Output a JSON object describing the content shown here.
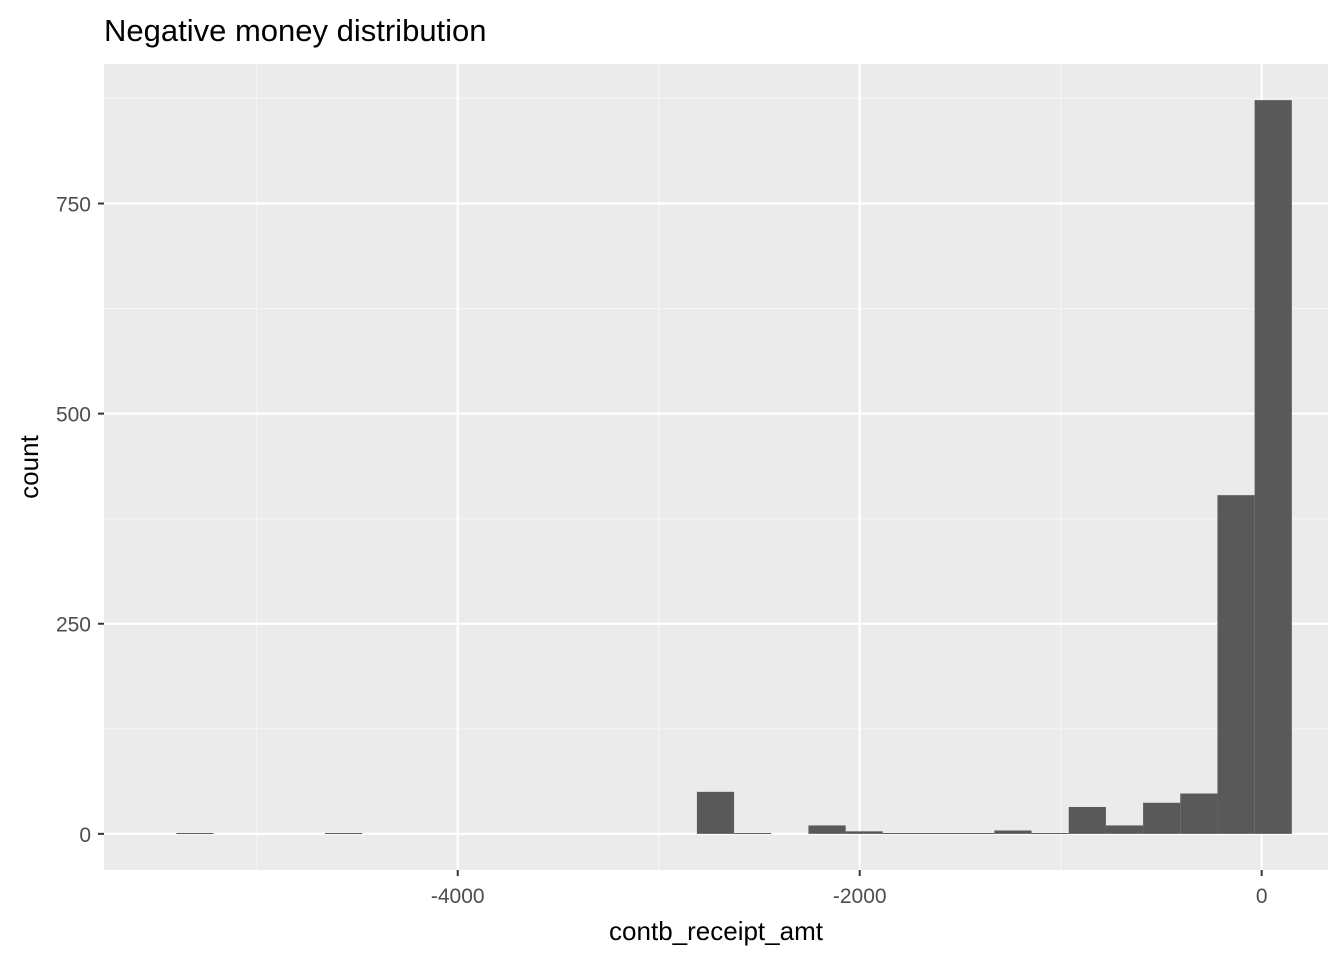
{
  "chart_data": {
    "type": "bar",
    "title": "Negative money distribution",
    "xlabel": "contb_receipt_amt",
    "ylabel": "count",
    "bins": [
      {
        "x0": -5400,
        "x1": -5215,
        "count": 1
      },
      {
        "x0": -5215,
        "x1": -5030,
        "count": 0
      },
      {
        "x0": -5030,
        "x1": -4845,
        "count": 0
      },
      {
        "x0": -4845,
        "x1": -4660,
        "count": 0
      },
      {
        "x0": -4660,
        "x1": -4475,
        "count": 1
      },
      {
        "x0": -4475,
        "x1": -4290,
        "count": 0
      },
      {
        "x0": -4290,
        "x1": -4105,
        "count": 0
      },
      {
        "x0": -4105,
        "x1": -3920,
        "count": 0
      },
      {
        "x0": -3920,
        "x1": -3735,
        "count": 0
      },
      {
        "x0": -3735,
        "x1": -3550,
        "count": 0
      },
      {
        "x0": -3550,
        "x1": -3365,
        "count": 0
      },
      {
        "x0": -3365,
        "x1": -3180,
        "count": 0
      },
      {
        "x0": -3180,
        "x1": -2995,
        "count": 0
      },
      {
        "x0": -2995,
        "x1": -2810,
        "count": 0
      },
      {
        "x0": -2810,
        "x1": -2625,
        "count": 50
      },
      {
        "x0": -2625,
        "x1": -2440,
        "count": 1
      },
      {
        "x0": -2440,
        "x1": -2255,
        "count": 0
      },
      {
        "x0": -2255,
        "x1": -2070,
        "count": 10
      },
      {
        "x0": -2070,
        "x1": -1885,
        "count": 3
      },
      {
        "x0": -1885,
        "x1": -1700,
        "count": 1
      },
      {
        "x0": -1700,
        "x1": -1515,
        "count": 1
      },
      {
        "x0": -1515,
        "x1": -1330,
        "count": 1
      },
      {
        "x0": -1330,
        "x1": -1145,
        "count": 4
      },
      {
        "x0": -1145,
        "x1": -960,
        "count": 1
      },
      {
        "x0": -960,
        "x1": -775,
        "count": 32
      },
      {
        "x0": -775,
        "x1": -590,
        "count": 10
      },
      {
        "x0": -590,
        "x1": -405,
        "count": 37
      },
      {
        "x0": -405,
        "x1": -220,
        "count": 48
      },
      {
        "x0": -220,
        "x1": -35,
        "count": 403
      },
      {
        "x0": -35,
        "x1": 150,
        "count": 873
      }
    ],
    "xlim": [
      -5760,
      330
    ],
    "ylim": [
      -43,
      916
    ],
    "x_ticks": [
      {
        "value": -4000,
        "label": "-4000"
      },
      {
        "value": -2000,
        "label": "-2000"
      },
      {
        "value": 0,
        "label": "0"
      }
    ],
    "x_minor_ticks": [
      -5000,
      -3000,
      -1000
    ],
    "y_ticks": [
      {
        "value": 0,
        "label": "0"
      },
      {
        "value": 250,
        "label": "250"
      },
      {
        "value": 500,
        "label": "500"
      },
      {
        "value": 750,
        "label": "750"
      }
    ],
    "y_minor_ticks": [
      125,
      375,
      625,
      875
    ],
    "grid": true,
    "colors": {
      "panel_background": "#ebebeb",
      "grid_major": "#ffffff",
      "grid_minor": "#f5f5f5",
      "bar_fill": "#595959",
      "tick_label": "#4d4d4d",
      "axis_tick": "#333333",
      "text": "#000000"
    }
  }
}
